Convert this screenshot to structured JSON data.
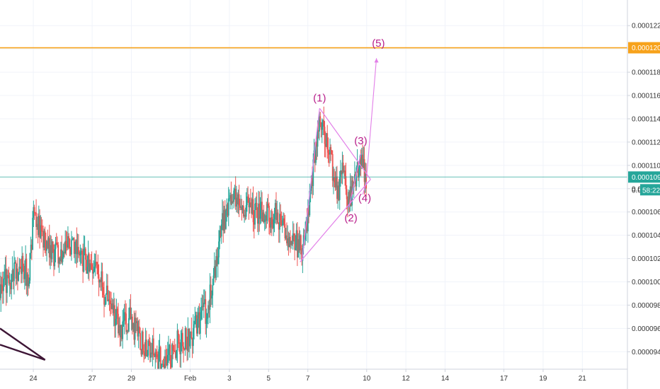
{
  "colors": {
    "up": "#26a69a",
    "down": "#ef5350",
    "grid": "#f0f3fa",
    "axis": "#cfd3dc",
    "resistance": "#f7a21b",
    "last_price": "#26a69a",
    "pattern": "#e27fe8",
    "wave_label": "#b81e8a",
    "trendline": "#3d1535"
  },
  "chart_data": {
    "type": "candlestick",
    "ylim": [
      9.25e-05,
      0.0001242
    ],
    "y_ticks": [
      "0.0000940",
      "0.0000960",
      "0.0000980",
      "0.0001000",
      "0.0001020",
      "0.0001040",
      "0.0001060",
      "0.0001080",
      "0.0001100",
      "0.0001120",
      "0.0001140",
      "0.0001160",
      "0.0001180",
      "0.0001200",
      "0.0001220"
    ],
    "x_ticks": [
      {
        "label": "24",
        "day": 24
      },
      {
        "label": "27",
        "day": 27
      },
      {
        "label": "29",
        "day": 29
      },
      {
        "label": "Feb",
        "day": 32
      },
      {
        "label": "3",
        "day": 34
      },
      {
        "label": "5",
        "day": 36
      },
      {
        "label": "7",
        "day": 38
      },
      {
        "label": "10",
        "day": 41
      },
      {
        "label": "12",
        "day": 43
      },
      {
        "label": "14",
        "day": 45
      },
      {
        "label": "17",
        "day": 48
      },
      {
        "label": "19",
        "day": 50
      },
      {
        "label": "21",
        "day": 52
      }
    ],
    "x_range_days": [
      22.3,
      54.3
    ],
    "resistance": {
      "value": 0.0001201,
      "label": "0.0001201"
    },
    "last_price": {
      "value": 0.000109,
      "label": "0.0001090",
      "countdown": "58:22",
      "countdown_prefix": "0.00"
    },
    "waves": [
      {
        "label": "(1)",
        "day": 38.6,
        "value": 0.0001155
      },
      {
        "label": "(2)",
        "day": 40.2,
        "value": 0.0001052
      },
      {
        "label": "(3)",
        "day": 40.7,
        "value": 0.0001118
      },
      {
        "label": "(4)",
        "day": 40.9,
        "value": 0.0001069
      },
      {
        "label": "(5)",
        "day": 41.6,
        "value": 0.0001202
      }
    ],
    "pattern_lines": [
      {
        "from": [
          38.6,
          0.0001149
        ],
        "to": [
          41.2,
          0.0001088
        ]
      },
      {
        "from": [
          37.6,
          0.0001017
        ],
        "to": [
          41.2,
          0.0001088
        ]
      },
      {
        "from": [
          37.7,
          0.0001018
        ],
        "to": [
          38.6,
          0.0001149
        ]
      },
      {
        "from": [
          40.1,
          0.0001064
        ],
        "to": [
          40.7,
          0.000111
        ]
      },
      {
        "from": [
          40.8,
          0.0001075
        ],
        "to": [
          41.0,
          0.0001086
        ]
      }
    ],
    "projection": {
      "from": [
        41.0,
        0.000109
      ],
      "to": [
        41.5,
        0.0001192
      ]
    },
    "trendlines": [
      {
        "from": [
          22.3,
          9.6e-05
        ],
        "to": [
          24.6,
          9.33e-05
        ]
      },
      {
        "from": [
          22.3,
          9.46e-05
        ],
        "to": [
          24.6,
          9.33e-05
        ]
      }
    ],
    "anchors": [
      [
        22.3,
        9.98e-05
      ],
      [
        22.8,
        0.0001
      ],
      [
        23.3,
        0.0001015
      ],
      [
        23.8,
        0.0001005
      ],
      [
        24.0,
        0.0001062
      ],
      [
        24.4,
        0.0001038
      ],
      [
        25.0,
        0.0001025
      ],
      [
        25.8,
        0.0001028
      ],
      [
        26.6,
        0.000102
      ],
      [
        27.1,
        0.000101
      ],
      [
        27.5,
        9.97e-05
      ],
      [
        28.0,
        9.75e-05
      ],
      [
        28.5,
        9.6e-05
      ],
      [
        28.9,
        9.68e-05
      ],
      [
        29.4,
        9.5e-05
      ],
      [
        29.9,
        9.45e-05
      ],
      [
        30.4,
        9.35e-05
      ],
      [
        30.8,
        9.28e-05
      ],
      [
        31.2,
        9.45e-05
      ],
      [
        31.8,
        9.5e-05
      ],
      [
        32.3,
        9.6e-05
      ],
      [
        32.8,
        9.75e-05
      ],
      [
        33.2,
        0.0001
      ],
      [
        33.5,
        0.000104
      ],
      [
        33.9,
        0.000106
      ],
      [
        34.3,
        0.0001074
      ],
      [
        34.8,
        0.0001065
      ],
      [
        35.3,
        0.000106
      ],
      [
        35.8,
        0.0001055
      ],
      [
        36.3,
        0.0001058
      ],
      [
        36.8,
        0.0001045
      ],
      [
        37.3,
        0.0001035
      ],
      [
        37.7,
        0.0001028
      ],
      [
        38.0,
        0.0001055
      ],
      [
        38.3,
        0.00011
      ],
      [
        38.6,
        0.000114
      ],
      [
        38.9,
        0.000112
      ],
      [
        39.2,
        0.0001105
      ],
      [
        39.5,
        0.0001075
      ],
      [
        39.8,
        0.0001095
      ],
      [
        40.1,
        0.0001068
      ],
      [
        40.4,
        0.0001085
      ],
      [
        40.7,
        0.00011
      ],
      [
        41.0,
        0.000109
      ]
    ],
    "seed": 73
  }
}
